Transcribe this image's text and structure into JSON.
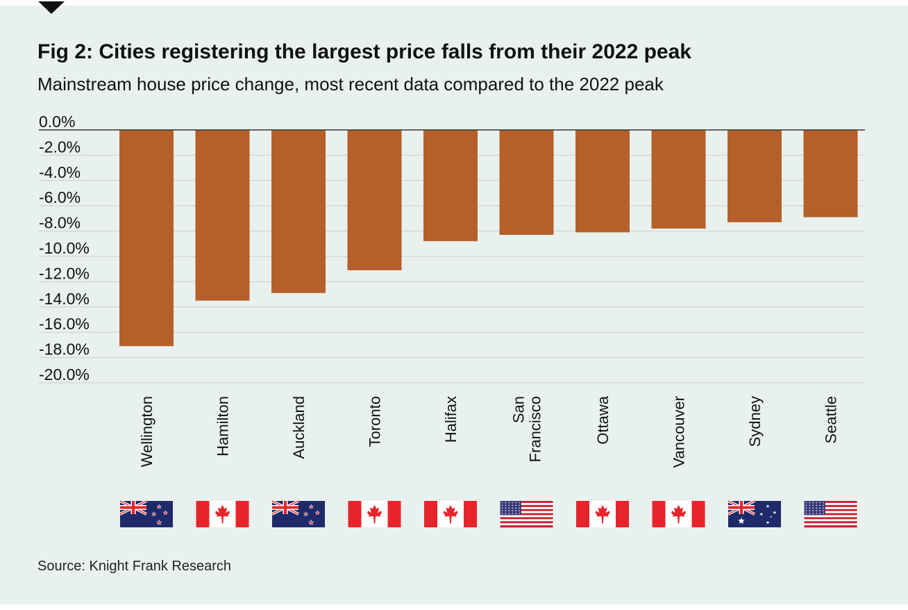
{
  "chart_data": {
    "type": "bar",
    "title": "Fig 2: Cities registering the largest price falls from their 2022 peak",
    "subtitle": "Mainstream house price change, most recent data compared to the 2022 peak",
    "categories": [
      {
        "label": [
          "Wellington"
        ],
        "country": "nz"
      },
      {
        "label": [
          "Hamilton"
        ],
        "country": "ca"
      },
      {
        "label": [
          "Auckland"
        ],
        "country": "nz"
      },
      {
        "label": [
          "Toronto"
        ],
        "country": "ca"
      },
      {
        "label": [
          "Halifax"
        ],
        "country": "ca"
      },
      {
        "label": [
          "San",
          "Francisco"
        ],
        "country": "us"
      },
      {
        "label": [
          "Ottawa"
        ],
        "country": "ca"
      },
      {
        "label": [
          "Vancouver"
        ],
        "country": "ca"
      },
      {
        "label": [
          "Sydney"
        ],
        "country": "au"
      },
      {
        "label": [
          "Seattle"
        ],
        "country": "us"
      }
    ],
    "values": [
      -17.1,
      -13.5,
      -12.9,
      -11.1,
      -8.8,
      -8.3,
      -8.1,
      -7.8,
      -7.3,
      -6.9
    ],
    "ylim": [
      -20,
      0
    ],
    "yticks": [
      "0.0%",
      "-2.0%",
      "-4.0%",
      "-6.0%",
      "-8.0%",
      "-10.0%",
      "-12.0%",
      "-14.0%",
      "-16.0%",
      "-18.0%",
      "-20.0%"
    ],
    "xlabel": "",
    "ylabel": "",
    "grid": true,
    "bar_color": "#b5602a",
    "source": "Source: Knight Frank Research"
  },
  "colors": {
    "background": "#e9f1ee",
    "bar": "#b5602a",
    "gridline": "#c8cdcb",
    "zero_line": "#333333",
    "flag_red": "#e8242b",
    "flag_blue": "#1f2a6b"
  }
}
